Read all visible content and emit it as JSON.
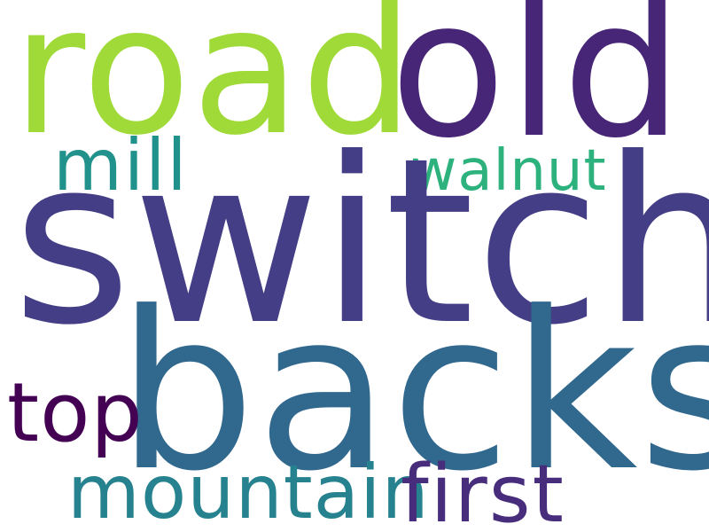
{
  "words": [
    {
      "id": "road",
      "text": "road",
      "color": "#a0da39"
    },
    {
      "id": "old",
      "text": "old",
      "color": "#482677"
    },
    {
      "id": "mill",
      "text": "mill",
      "color": "#21918c"
    },
    {
      "id": "walnut",
      "text": "walnut",
      "color": "#2db27d"
    },
    {
      "id": "switch",
      "text": "switch",
      "color": "#433e85"
    },
    {
      "id": "backs",
      "text": "backs",
      "color": "#31688e"
    },
    {
      "id": "top",
      "text": "top",
      "color": "#440154"
    },
    {
      "id": "mountain",
      "text": "mountain",
      "color": "#26828e"
    },
    {
      "id": "first",
      "text": "first",
      "color": "#472d7b"
    }
  ]
}
